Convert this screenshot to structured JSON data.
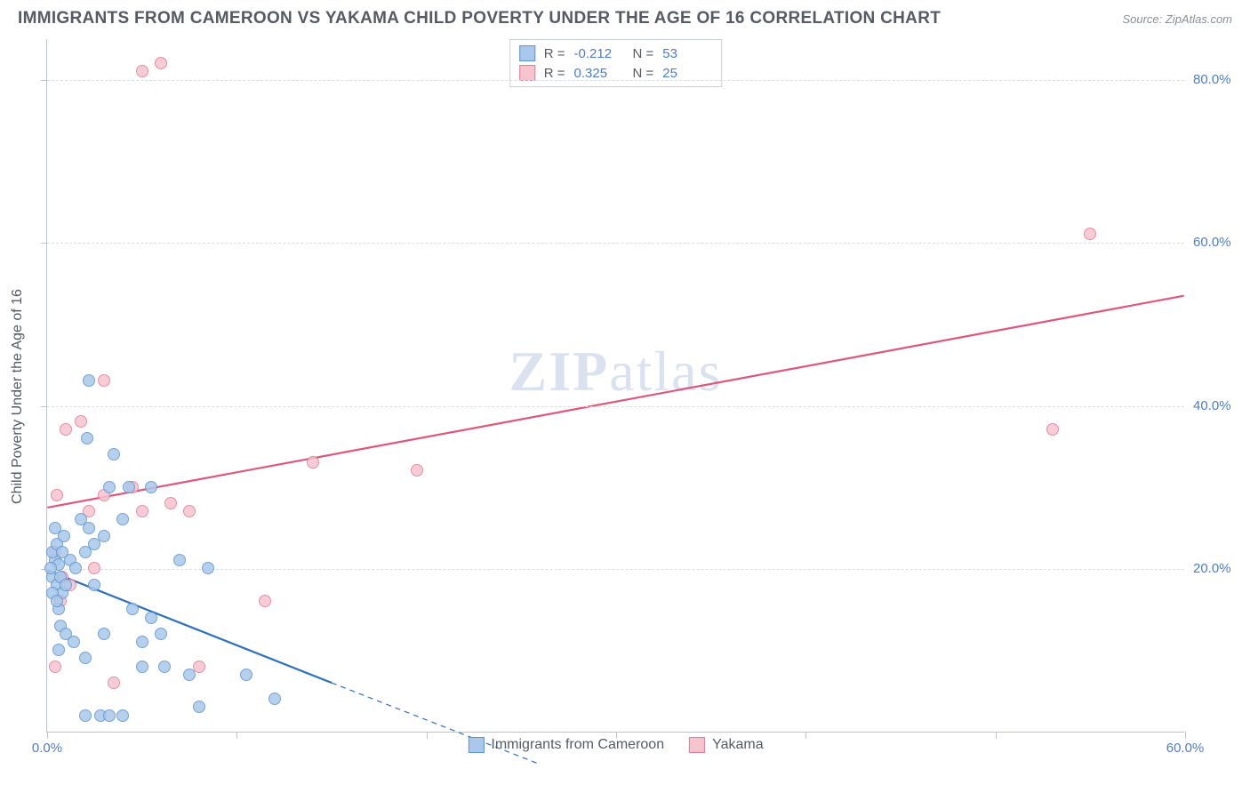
{
  "header": {
    "title": "IMMIGRANTS FROM CAMEROON VS YAKAMA CHILD POVERTY UNDER THE AGE OF 16 CORRELATION CHART",
    "source": "Source: ZipAtlas.com"
  },
  "chart": {
    "type": "scatter",
    "y_axis_title": "Child Poverty Under the Age of 16",
    "x_range": [
      0,
      60
    ],
    "y_range": [
      0,
      85
    ],
    "y_ticks": [
      20,
      40,
      60,
      80
    ],
    "y_tick_labels": [
      "20.0%",
      "40.0%",
      "60.0%",
      "80.0%"
    ],
    "x_ticks": [
      0,
      10,
      20,
      30,
      40,
      50,
      60
    ],
    "x_labels_shown": {
      "0": "0.0%",
      "60": "60.0%"
    },
    "grid_color": "#d9dee3",
    "axis_color": "#bcc3ca",
    "background_color": "#ffffff",
    "label_color": "#4a7ec9",
    "watermark": "ZIPatlas"
  },
  "series": {
    "blue": {
      "label": "Immigrants from Cameroon",
      "fill": "#a9c8eb",
      "stroke": "#5e93d0",
      "line_color": "#2f6fc0",
      "r_label": "R = ",
      "r_value": "-0.212",
      "n_label": "N = ",
      "n_value": "53",
      "trend": {
        "x1": 0,
        "y1": 19.8,
        "x2": 15,
        "y2": 6.0,
        "dash_x2": 26,
        "dash_y2": -4
      },
      "points": [
        [
          0.3,
          19
        ],
        [
          0.4,
          21
        ],
        [
          0.5,
          18
        ],
        [
          0.6,
          20.5
        ],
        [
          0.3,
          22
        ],
        [
          0.7,
          19
        ],
        [
          0.8,
          17
        ],
        [
          0.5,
          23
        ],
        [
          0.9,
          24
        ],
        [
          0.4,
          25
        ],
        [
          1.0,
          18
        ],
        [
          1.2,
          21
        ],
        [
          0.3,
          17
        ],
        [
          0.6,
          15
        ],
        [
          1.5,
          20
        ],
        [
          0.7,
          13
        ],
        [
          2.0,
          22
        ],
        [
          2.2,
          25
        ],
        [
          2.5,
          23
        ],
        [
          1.8,
          26
        ],
        [
          3.0,
          24
        ],
        [
          3.3,
          30
        ],
        [
          3.5,
          34
        ],
        [
          1.0,
          12
        ],
        [
          1.4,
          11
        ],
        [
          0.6,
          10
        ],
        [
          2.0,
          9
        ],
        [
          2.5,
          18
        ],
        [
          3.0,
          12
        ],
        [
          4.0,
          26
        ],
        [
          4.3,
          30
        ],
        [
          5.0,
          11
        ],
        [
          5.5,
          14
        ],
        [
          6.0,
          12
        ],
        [
          7.0,
          21
        ],
        [
          8.5,
          20
        ],
        [
          2.2,
          43
        ],
        [
          2.1,
          36
        ],
        [
          2.0,
          2
        ],
        [
          2.8,
          2
        ],
        [
          3.3,
          2
        ],
        [
          4.0,
          2
        ],
        [
          5.0,
          8
        ],
        [
          6.2,
          8
        ],
        [
          7.5,
          7
        ],
        [
          8.0,
          3
        ],
        [
          10.5,
          7
        ],
        [
          12.0,
          4
        ],
        [
          5.5,
          30
        ],
        [
          4.5,
          15
        ],
        [
          0.2,
          20
        ],
        [
          0.5,
          16
        ],
        [
          0.8,
          22
        ]
      ]
    },
    "pink": {
      "label": "Yakama",
      "fill": "#f6c4cf",
      "stroke": "#e67a93",
      "line_color": "#e0567b",
      "r_label": "R = ",
      "r_value": "0.325",
      "n_label": "N = ",
      "n_value": "25",
      "trend": {
        "x1": 0,
        "y1": 27.5,
        "x2": 60,
        "y2": 53.5
      },
      "points": [
        [
          0.5,
          29
        ],
        [
          1.0,
          37
        ],
        [
          1.8,
          38
        ],
        [
          3.0,
          43
        ],
        [
          2.5,
          20
        ],
        [
          0.7,
          16
        ],
        [
          0.8,
          19
        ],
        [
          1.2,
          18
        ],
        [
          0.4,
          22
        ],
        [
          5.0,
          81
        ],
        [
          6.0,
          82
        ],
        [
          3.0,
          29
        ],
        [
          4.5,
          30
        ],
        [
          6.5,
          28
        ],
        [
          7.5,
          27
        ],
        [
          14.0,
          33
        ],
        [
          19.5,
          32
        ],
        [
          8.0,
          8
        ],
        [
          11.5,
          16
        ],
        [
          3.5,
          6
        ],
        [
          0.4,
          8
        ],
        [
          55.0,
          61
        ],
        [
          53.0,
          37
        ],
        [
          2.2,
          27
        ],
        [
          5.0,
          27
        ]
      ]
    }
  }
}
